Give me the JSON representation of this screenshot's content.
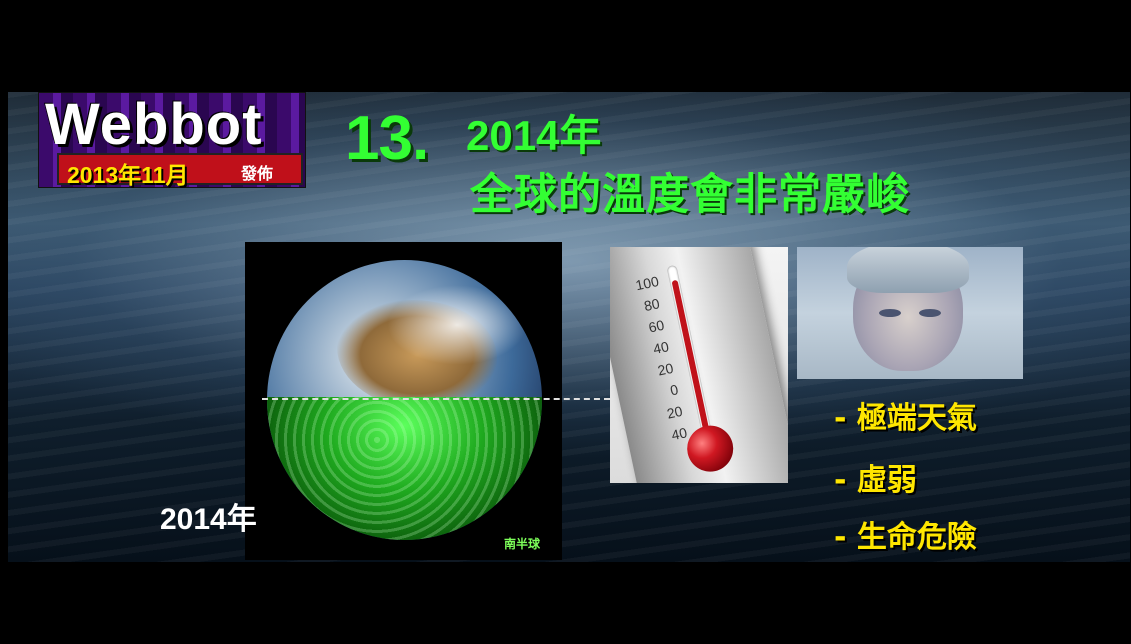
{
  "logo": {
    "word": "Webbot",
    "date": "2013年11月",
    "release": "發佈"
  },
  "title": {
    "number": "13.",
    "year": "2014年",
    "subtitle": "全球的溫度會非常嚴峻"
  },
  "earth": {
    "year_label": "2014年",
    "hemisphere_label": "南半球"
  },
  "thermometer": {
    "ticks": [
      "100",
      "80",
      "60",
      "40",
      "20",
      "0",
      "20",
      "40"
    ]
  },
  "bullets": [
    "- 極端天氣",
    "- 虛弱",
    "- 生命危險"
  ],
  "colors": {
    "title_green": "#33ff33",
    "bullet_yellow": "#ffe600",
    "logo_red": "#c0101a"
  }
}
